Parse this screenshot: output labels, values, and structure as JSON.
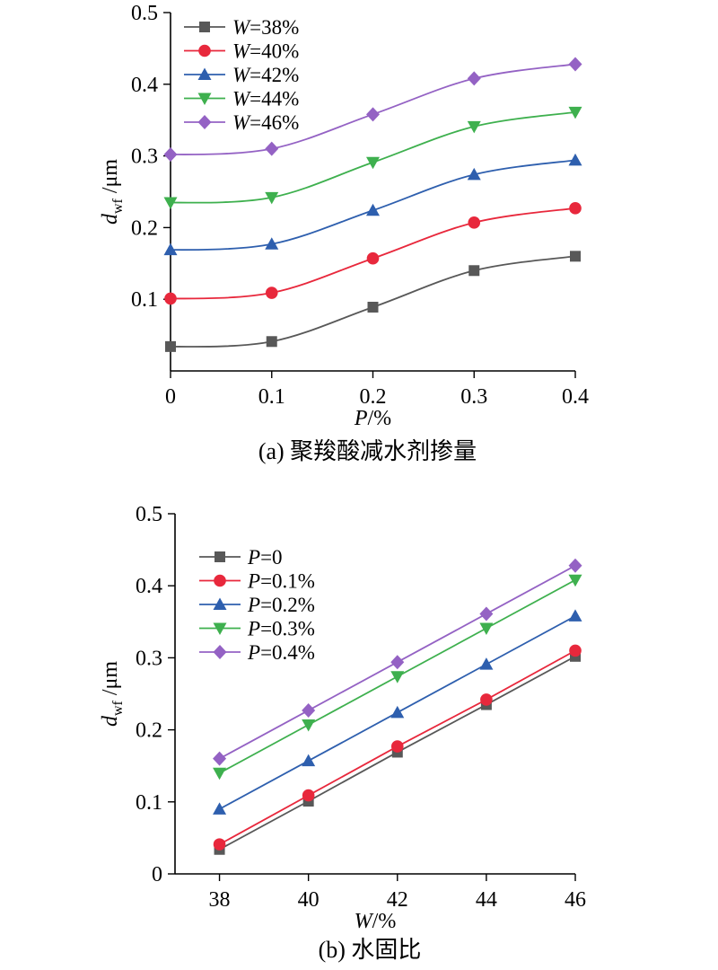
{
  "colors": {
    "series": [
      "#585858",
      "#e8283c",
      "#2e5fae",
      "#3eb04e",
      "#9462c4"
    ],
    "axis": "#000000",
    "background": "#ffffff"
  },
  "markers": [
    "square",
    "circle",
    "triangle-up",
    "triangle-down",
    "diamond"
  ],
  "chart_data": [
    {
      "type": "line",
      "smooth": true,
      "caption": "(a) 聚羧酸减水剂掺量",
      "xlabel": {
        "var": "P",
        "unit": "/%"
      },
      "ylabel": {
        "var": "d",
        "sub": "wf",
        "unit": " /μm"
      },
      "xlim": [
        0,
        0.4
      ],
      "ylim": [
        0,
        0.5
      ],
      "xticks": [
        "0",
        "0.1",
        "0.2",
        "0.3",
        "0.4"
      ],
      "yticks": [
        "0.1",
        "0.2",
        "0.3",
        "0.4",
        "0.5"
      ],
      "grid": false,
      "legend_position": "top-left",
      "x": [
        0,
        0.1,
        0.2,
        0.3,
        0.4
      ],
      "series": [
        {
          "name": "W=38%",
          "legend_var": "W",
          "legend_rest": "=38%",
          "values": [
            0.034,
            0.041,
            0.089,
            0.14,
            0.16
          ]
        },
        {
          "name": "W=40%",
          "legend_var": "W",
          "legend_rest": "=40%",
          "values": [
            0.101,
            0.109,
            0.157,
            0.207,
            0.227
          ]
        },
        {
          "name": "W=42%",
          "legend_var": "W",
          "legend_rest": "=42%",
          "values": [
            0.169,
            0.177,
            0.224,
            0.274,
            0.294
          ]
        },
        {
          "name": "W=44%",
          "legend_var": "W",
          "legend_rest": "=44%",
          "values": [
            0.235,
            0.242,
            0.291,
            0.341,
            0.361
          ]
        },
        {
          "name": "W=46%",
          "legend_var": "W",
          "legend_rest": "=46%",
          "values": [
            0.302,
            0.31,
            0.358,
            0.408,
            0.428
          ]
        }
      ]
    },
    {
      "type": "line",
      "smooth": false,
      "caption": "(b) 水固比",
      "xlabel": {
        "var": "W",
        "unit": "/%"
      },
      "ylabel": {
        "var": "d",
        "sub": "wf",
        "unit": " /μm"
      },
      "xlim": [
        37,
        46
      ],
      "ylim": [
        0,
        0.5
      ],
      "xticks": [
        "38",
        "40",
        "42",
        "44",
        "46"
      ],
      "yticks": [
        "0",
        "0.1",
        "0.2",
        "0.3",
        "0.4",
        "0.5"
      ],
      "grid": false,
      "legend_position": "top-left",
      "x": [
        38,
        40,
        42,
        44,
        46
      ],
      "series": [
        {
          "name": "P=0",
          "legend_var": "P",
          "legend_rest": "=0",
          "values": [
            0.034,
            0.101,
            0.169,
            0.235,
            0.302
          ]
        },
        {
          "name": "P=0.1%",
          "legend_var": "P",
          "legend_rest": "=0.1%",
          "values": [
            0.041,
            0.109,
            0.177,
            0.242,
            0.31
          ]
        },
        {
          "name": "P=0.2%",
          "legend_var": "P",
          "legend_rest": "=0.2%",
          "values": [
            0.09,
            0.157,
            0.224,
            0.291,
            0.358
          ]
        },
        {
          "name": "P=0.3%",
          "legend_var": "P",
          "legend_rest": "=0.3%",
          "values": [
            0.14,
            0.207,
            0.274,
            0.341,
            0.408
          ]
        },
        {
          "name": "P=0.4%",
          "legend_var": "P",
          "legend_rest": "=0.4%",
          "values": [
            0.16,
            0.227,
            0.294,
            0.361,
            0.428
          ]
        }
      ]
    }
  ]
}
